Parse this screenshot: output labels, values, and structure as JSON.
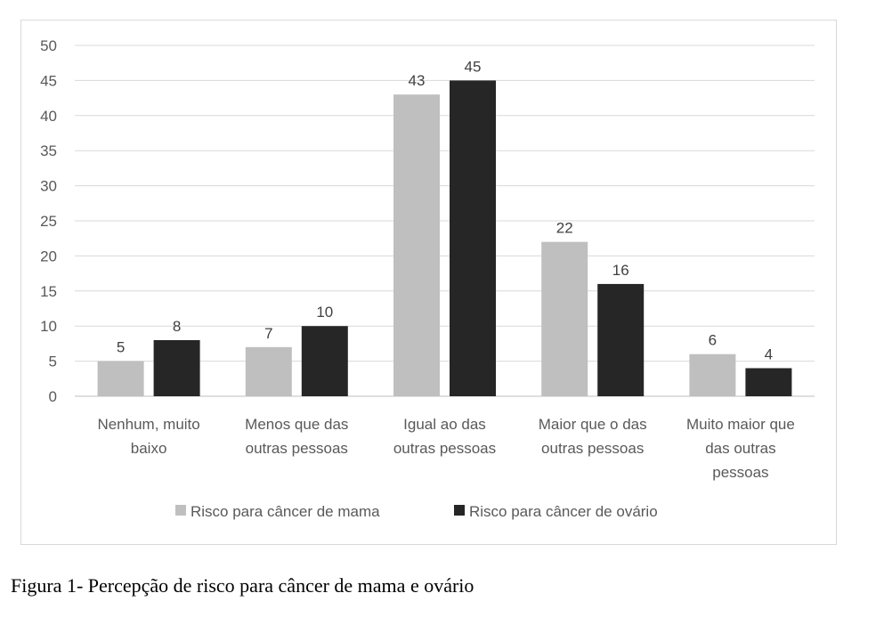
{
  "chart_data": {
    "type": "bar",
    "title": "",
    "xlabel": "",
    "ylabel": "",
    "ylim": [
      0,
      50
    ],
    "yticks": [
      0,
      5,
      10,
      15,
      20,
      25,
      30,
      35,
      40,
      45,
      50
    ],
    "grid": true,
    "legend_position": "bottom",
    "categories": [
      [
        "Nenhum, muito",
        "baixo"
      ],
      [
        "Menos que das",
        "outras pessoas"
      ],
      [
        "Igual ao das",
        "outras pessoas"
      ],
      [
        "Maior que o das",
        "outras pessoas"
      ],
      [
        "Muito maior que",
        "das outras",
        "pessoas"
      ]
    ],
    "series": [
      {
        "name": "Risco para câncer de mama",
        "color": "#bfbfbf",
        "values": [
          5,
          7,
          43,
          22,
          6
        ]
      },
      {
        "name": "Risco para câncer de ovário",
        "color": "#262626",
        "values": [
          8,
          10,
          45,
          16,
          4
        ]
      }
    ]
  },
  "caption": "Figura 1- Percepção de risco para câncer de mama e ovário"
}
